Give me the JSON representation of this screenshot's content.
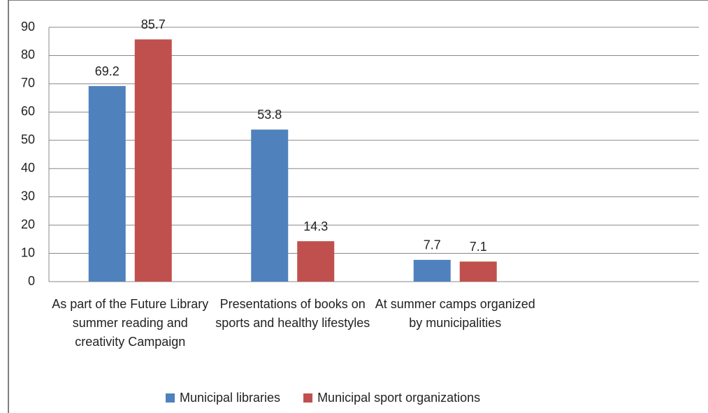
{
  "chart_data": {
    "type": "bar",
    "categories": [
      "As part of the Future Library summer reading and creativity Campaign",
      "Presentations of books on sports and healthy lifestyles",
      "At summer camps organized by municipalities",
      null
    ],
    "series": [
      {
        "name": "Municipal libraries",
        "color": "#4f81bd",
        "values": [
          69.2,
          53.8,
          7.7,
          null
        ]
      },
      {
        "name": "Municipal sport organizations",
        "color": "#c0504d",
        "values": [
          85.7,
          14.3,
          7.1,
          null
        ]
      }
    ],
    "ylim": [
      0,
      90
    ],
    "yticks": [
      0,
      10,
      20,
      30,
      40,
      50,
      60,
      70,
      80,
      90
    ],
    "grid": true,
    "legend": "bottom"
  }
}
